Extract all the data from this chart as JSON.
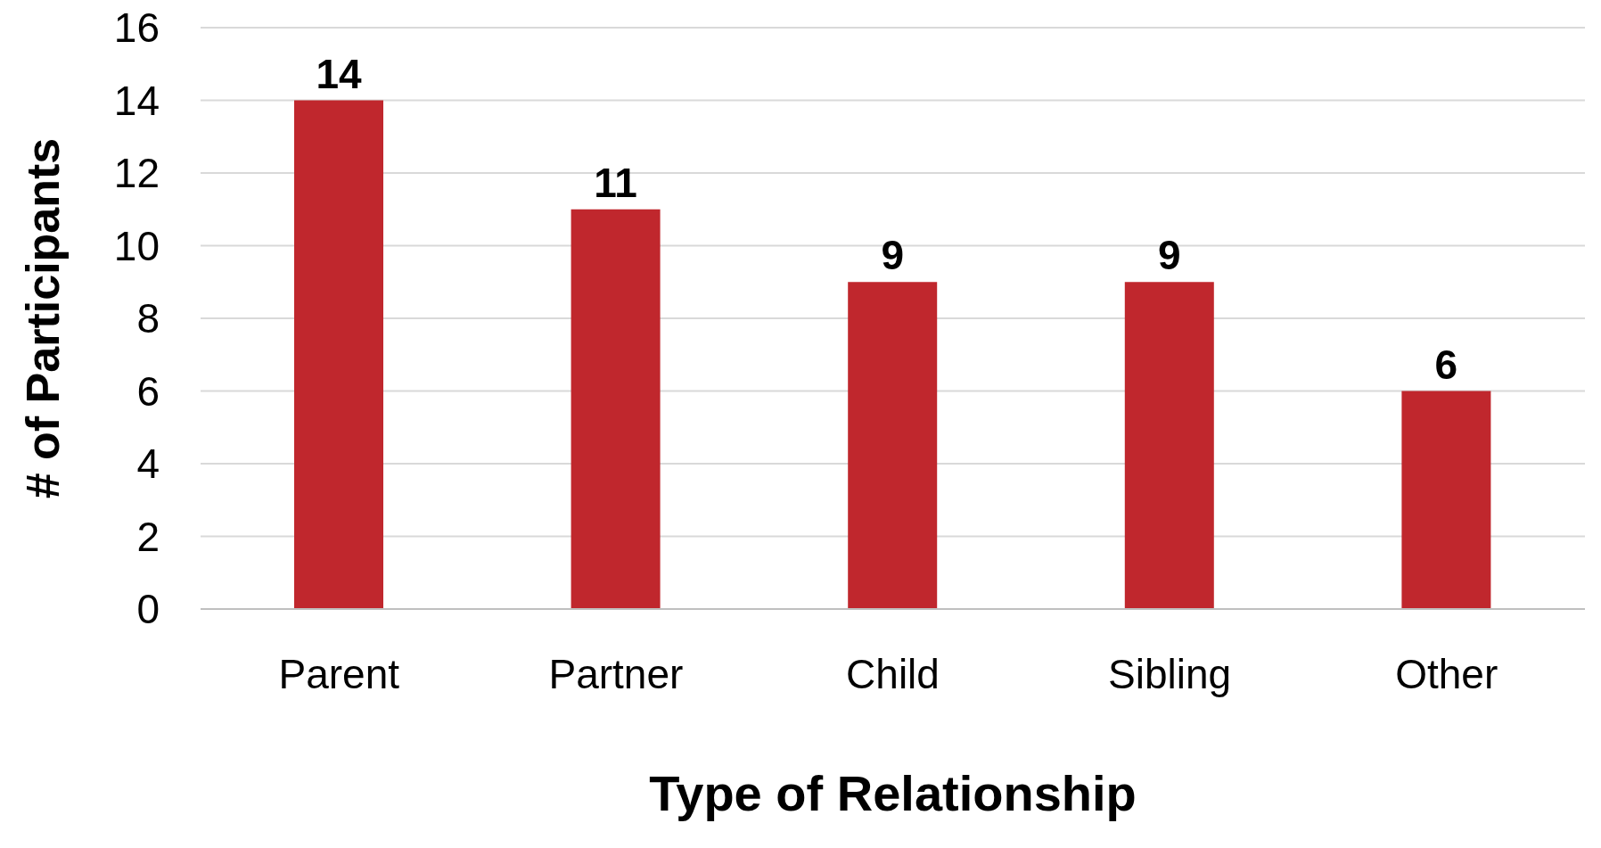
{
  "chart_data": {
    "type": "bar",
    "xlabel": "Type of Relationship",
    "ylabel": "# of Participants",
    "categories": [
      "Parent",
      "Partner",
      "Child",
      "Sibling",
      "Other"
    ],
    "values": [
      14,
      11,
      9,
      9,
      6
    ],
    "color": "#c0272d",
    "ylim": [
      0,
      16
    ],
    "yticks": [
      0,
      2,
      4,
      6,
      8,
      10,
      12,
      14,
      16
    ],
    "grid": "y",
    "data_labels": true,
    "legend": false
  }
}
